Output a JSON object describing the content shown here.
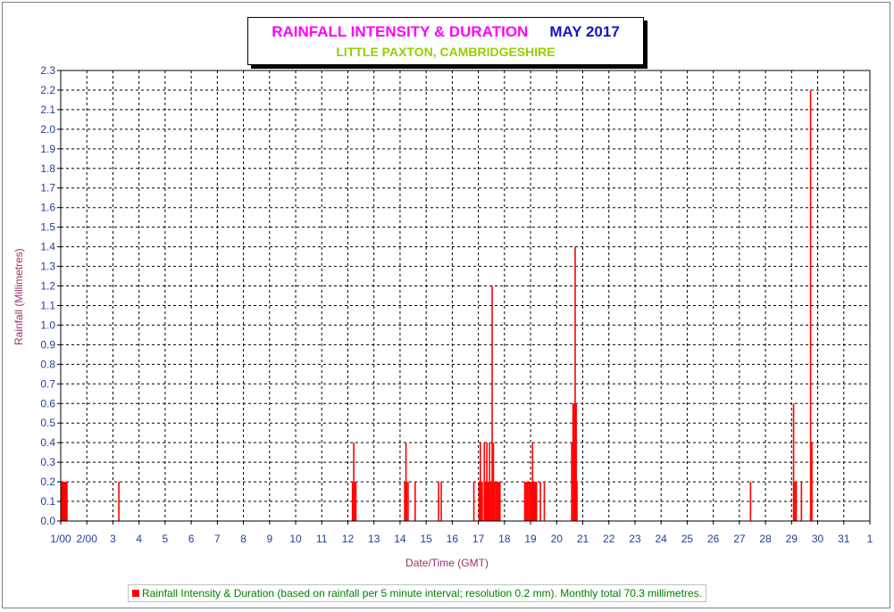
{
  "header": {
    "title": "RAINFALL INTENSITY & DURATION",
    "month": "MAY 2017",
    "subtitle": "LITTLE PAXTON, CAMBRIDGESHIRE"
  },
  "legend": {
    "text": "Rainfall Intensity & Duration (based on rainfall per 5 minute interval; resolution 0.2 mm). Monthly total 70.3 millimetres."
  },
  "colors": {
    "title": "#ff00ff",
    "month": "#1414c8",
    "subtitle": "#99cc00",
    "bars": "#ff0000",
    "axis_labels": "#993366",
    "tick_labels": "#1f3f9f",
    "legend_text": "#008000"
  },
  "chart_data": {
    "type": "bar",
    "xlabel": "Date/Time (GMT)",
    "ylabel": "Rainfall (Millimetres)",
    "ylim": [
      0,
      2.3
    ],
    "xlim": [
      1,
      32
    ],
    "grid": true,
    "legend_position": "bottom",
    "x_tick_labels": [
      "1/00",
      "2/00",
      "3",
      "4",
      "5",
      "6",
      "7",
      "8",
      "9",
      "10",
      "11",
      "12",
      "13",
      "14",
      "15",
      "16",
      "17",
      "18",
      "19",
      "20",
      "21",
      "22",
      "23",
      "24",
      "25",
      "26",
      "27",
      "28",
      "29",
      "30",
      "31",
      "1"
    ],
    "y_tick_labels": [
      "0.0",
      "0.1",
      "0.2",
      "0.3",
      "0.4",
      "0.5",
      "0.6",
      "0.7",
      "0.8",
      "0.9",
      "1.0",
      "1.1",
      "1.2",
      "1.3",
      "1.4",
      "1.5",
      "1.6",
      "1.7",
      "1.8",
      "1.9",
      "2.0",
      "2.1",
      "2.2",
      "2.3"
    ],
    "series": [
      {
        "name": "Rainfall Intensity & Duration (based on rainfall per 5 minute interval; resolution 0.2 mm). Monthly total 70.3 millimetres.",
        "x": [
          1.0,
          1.03,
          1.06,
          1.09,
          1.12,
          1.15,
          1.18,
          1.21,
          3.2,
          12.15,
          12.2,
          12.25,
          12.28,
          14.15,
          14.2,
          14.22,
          14.28,
          14.55,
          15.45,
          15.55,
          16.8,
          17.0,
          17.05,
          17.08,
          17.12,
          17.2,
          17.25,
          17.3,
          17.35,
          17.4,
          17.45,
          17.5,
          17.52,
          17.55,
          17.6,
          17.65,
          17.7,
          17.75,
          17.8,
          18.75,
          18.8,
          18.85,
          18.9,
          18.95,
          19.0,
          19.05,
          19.1,
          19.15,
          19.2,
          19.35,
          19.5,
          20.55,
          20.6,
          20.65,
          20.68,
          20.72,
          20.75,
          27.4,
          29.05,
          29.1,
          29.15,
          29.35,
          29.7,
          29.75
        ],
        "values": [
          0.2,
          0.2,
          0.2,
          0.2,
          0.2,
          0.2,
          0.2,
          0.2,
          0.2,
          0.2,
          0.4,
          0.2,
          0.2,
          0.2,
          0.4,
          0.2,
          0.2,
          0.2,
          0.2,
          0.2,
          0.2,
          0.2,
          0.4,
          0.2,
          0.2,
          0.4,
          0.2,
          0.4,
          0.2,
          0.4,
          0.2,
          1.2,
          0.2,
          0.4,
          0.2,
          0.2,
          0.2,
          0.2,
          0.2,
          0.2,
          0.2,
          0.2,
          0.2,
          0.2,
          0.2,
          0.4,
          0.2,
          0.2,
          0.2,
          0.2,
          0.2,
          0.4,
          0.6,
          0.6,
          1.4,
          0.6,
          0.2,
          0.2,
          0.6,
          0.2,
          0.2,
          0.2,
          2.2,
          0.4
        ]
      }
    ]
  }
}
